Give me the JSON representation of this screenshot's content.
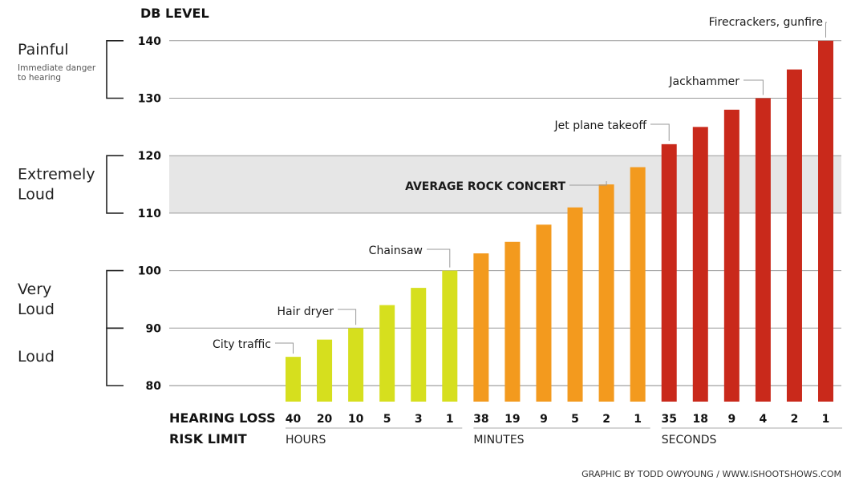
{
  "chart_data": {
    "type": "bar",
    "ylabel": "DB LEVEL",
    "ylim": [
      80,
      140
    ],
    "yticks": [
      80,
      90,
      100,
      110,
      120,
      130,
      140
    ],
    "grid": true,
    "highlight_band": {
      "from": 110,
      "to": 120,
      "label": "AVERAGE ROCK CONCERT"
    },
    "risk_label": [
      "HEARING LOSS",
      "RISK LIMIT"
    ],
    "categories": [
      "40",
      "20",
      "10",
      "5",
      "3",
      "1",
      "38",
      "19",
      "9",
      "5",
      "2",
      "1",
      "35",
      "18",
      "9",
      "4",
      "2",
      "1"
    ],
    "values": [
      85,
      88,
      90,
      94,
      97,
      100,
      103,
      105,
      108,
      111,
      115,
      118,
      122,
      125,
      128,
      130,
      135,
      140
    ],
    "groups": [
      {
        "label": "HOURS",
        "start": 0,
        "end": 5,
        "color": "#d6df1e"
      },
      {
        "label": "MINUTES",
        "start": 6,
        "end": 11,
        "color": "#f39a1e"
      },
      {
        "label": "SECONDS",
        "start": 12,
        "end": 17,
        "color": "#c9291b"
      }
    ],
    "categories_zones": [
      {
        "label": [
          "Painful"
        ],
        "from": 130,
        "to": 140,
        "note": [
          "Immediate danger",
          "to hearing"
        ]
      },
      {
        "label": [
          "Extremely",
          "Loud"
        ],
        "from": 110,
        "to": 120
      },
      {
        "label": [
          "Very",
          "Loud"
        ],
        "from": 90,
        "to": 100
      },
      {
        "label": [
          "Loud"
        ],
        "from": 80,
        "to": 90
      }
    ],
    "annotations": [
      {
        "text": "City traffic",
        "bar": 0
      },
      {
        "text": "Hair dryer",
        "bar": 2
      },
      {
        "text": "Chainsaw",
        "bar": 5
      },
      {
        "text": "AVERAGE ROCK CONCERT",
        "bar": 10,
        "bold": true
      },
      {
        "text": "Jet plane takeoff",
        "bar": 12
      },
      {
        "text": "Jackhammer",
        "bar": 15
      },
      {
        "text": "Firecrackers, gunfire",
        "bar": 17
      }
    ]
  },
  "credit": "GRAPHIC BY TODD OWYOUNG / WWW.ISHOOTSHOWS.COM"
}
